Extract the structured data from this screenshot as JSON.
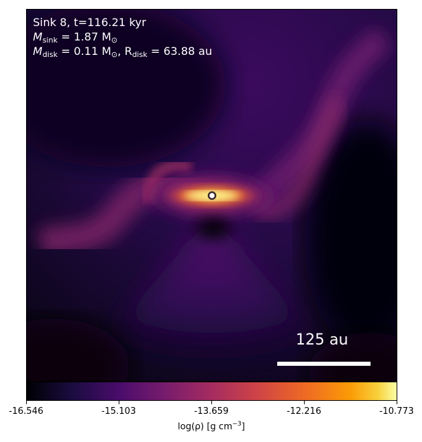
{
  "annotation": {
    "line1": "Sink 8, t=116.21 kyr",
    "msink_label": "M",
    "msink_sub": "sink",
    "msink_value": " = 1.87 M",
    "msun_symbol": "⊙",
    "mdisk_label": "M",
    "mdisk_sub": "disk",
    "mdisk_value": " = 0.11 M",
    "rdisk_sep": ", R",
    "rdisk_sub": "disk",
    "rdisk_value": " = 63.88 au"
  },
  "scale_bar": {
    "label": "125 au"
  },
  "colorbar": {
    "colormap": "inferno",
    "min": -16.546,
    "max": -10.773,
    "ticks": [
      "-16.546",
      "-15.103",
      "-13.659",
      "-12.216",
      "-10.773"
    ],
    "label_prefix": "log(ρ) [g cm",
    "label_exp": "−3",
    "label_suffix": "]"
  },
  "sink_marker": {
    "fill": "#ffffff",
    "stroke": "#3a2a2a"
  }
}
